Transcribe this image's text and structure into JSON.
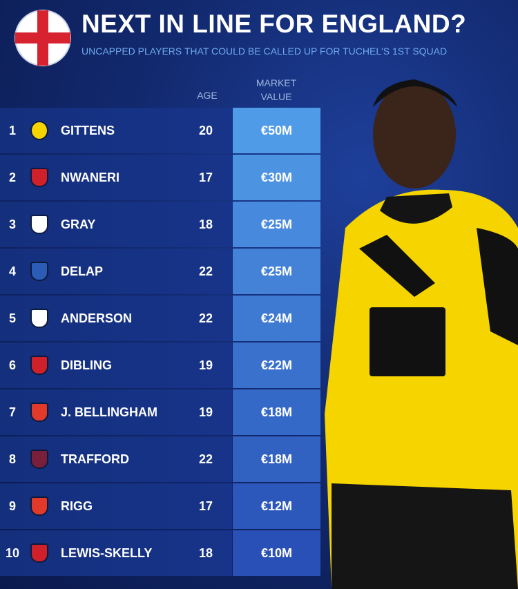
{
  "header": {
    "title": "NEXT IN LINE FOR ENGLAND?",
    "subtitle": "UNCAPPED PLAYERS THAT COULD BE CALLED UP FOR TUCHEL'S 1ST SQUAD"
  },
  "table": {
    "columns": [
      "AGE",
      "MARKET VALUE"
    ],
    "rows": [
      [
        1,
        "GITTENS",
        20,
        "€50M"
      ],
      [
        2,
        "NWANERI",
        17,
        "€30M"
      ],
      [
        3,
        "GRAY",
        18,
        "€25M"
      ],
      [
        4,
        "DELAP",
        22,
        "€25M"
      ],
      [
        5,
        "ANDERSON",
        22,
        "€24M"
      ],
      [
        6,
        "DIBLING",
        19,
        "€22M"
      ],
      [
        7,
        "J. BELLINGHAM",
        19,
        "€18M"
      ],
      [
        8,
        "TRAFFORD",
        22,
        "€18M"
      ],
      [
        9,
        "RIGG",
        17,
        "€12M"
      ],
      [
        10,
        "LEWIS-SKELLY",
        18,
        "€10M"
      ]
    ]
  }
}
